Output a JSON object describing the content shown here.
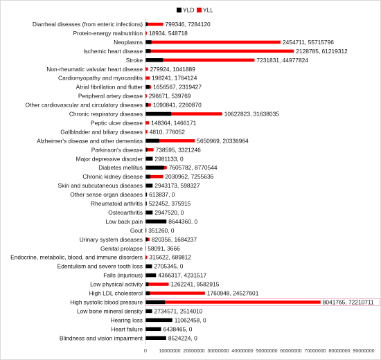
{
  "chart_data": {
    "type": "bar",
    "orientation": "horizontal",
    "stacked": true,
    "categories": [
      "Diarrheal diseases (from enteric infections)",
      "Protein-energy malnutrition",
      "Neoplasms",
      "Ischemic heart disease",
      "Stroke",
      "Non-rheumatic valvular heart disease",
      "Cardiomyopathy and myocarditis",
      "Atrial fibrillation and flutter",
      "Peripheral artery disease",
      "Other cardiovascular and circulatory diseases",
      "Chronic respiratory diseases",
      "Peptic ulcer disease",
      "Gallbladder and biliary diseases",
      "Alzheimer's disease and other dementias",
      "Parkinson's disease",
      "Major depressive disorder",
      "Diabetes mellitus",
      "Chronic kidney disease",
      "Skin and subcutaneous diseases",
      "Other sense organ diseases",
      "Rheumatoid arthritis",
      "Osteoarthritis",
      "Low back pain",
      "Gout",
      "Urinary system diseases",
      "Genital prolapse",
      "Endocrine, metabolic, blood, and immune disorders",
      "Edentulism and severe tooth loss",
      "Falls (injurious)",
      "Low physical activity",
      "High LDL cholesterol",
      "High systolic blood pressure",
      "Low bone mineral density",
      "Hearing loss",
      "Heart failure",
      "Blindness and vision impairment"
    ],
    "series": [
      {
        "name": "YLD",
        "color": "#000000",
        "values": [
          799346,
          18934,
          2454711,
          2128785,
          7231831,
          279924,
          198241,
          1656567,
          296671,
          1090841,
          10622823,
          148364,
          4810,
          5650969,
          738595,
          2981133,
          7605782,
          2030962,
          2943173,
          613837,
          522452,
          2947520,
          8644360,
          351260,
          820356,
          58091,
          315622,
          2705345,
          4366317,
          1262241,
          1760948,
          8041765,
          2734571,
          11062458,
          6438465,
          8524224
        ]
      },
      {
        "name": "YLL",
        "color": "#ff0000",
        "values": [
          7284120,
          548718,
          55715796,
          61219312,
          44977824,
          1041889,
          1764124,
          2319427,
          539769,
          2260870,
          31638035,
          1466171,
          776052,
          20336964,
          3321246,
          0,
          8770544,
          7255636,
          598327,
          0,
          375915,
          0,
          0,
          0,
          1684237,
          3666,
          689812,
          0,
          4231517,
          9582915,
          24527601,
          72210711,
          2514010,
          0,
          0,
          0
        ]
      }
    ],
    "data_labels": [
      "799346, 7284120",
      "18934, 548718",
      "2454711, 55715796",
      "2128785, 61219312",
      "7231831, 44977824",
      "279924, 1041889",
      "198241, 1764124",
      "1656567, 2319427",
      "296671, 539769",
      "1090841, 2260870",
      "10622823, 31638035",
      "148364, 1466171",
      "4810, 776052",
      "5650969, 20336964",
      "738595, 3321246",
      "2981133, 0",
      "7605782, 8770544",
      "2030962, 7255636",
      "2943173, 598327",
      "613837, 0",
      "522452, 375915",
      "2947520, 0",
      "8644360, 0",
      "351260, 0",
      "820356, 1684237",
      "58091, 3666",
      "315622, 689812",
      "2705345, 0",
      "4366317, 4231517",
      "1262241, 9582915",
      "1760948, 24527601",
      "8041765, 72210711",
      "2734571, 2514010",
      "11062458, 0",
      "6438465, 0",
      "8524224, 0"
    ],
    "x_ticks": [
      "0",
      "10000000",
      "20000000",
      "30000000",
      "40000000",
      "50000000",
      "60000000",
      "70000000",
      "80000000",
      "90000000"
    ],
    "xlim": [
      0,
      90000000
    ],
    "legend_position": "top-center",
    "grid": false
  }
}
